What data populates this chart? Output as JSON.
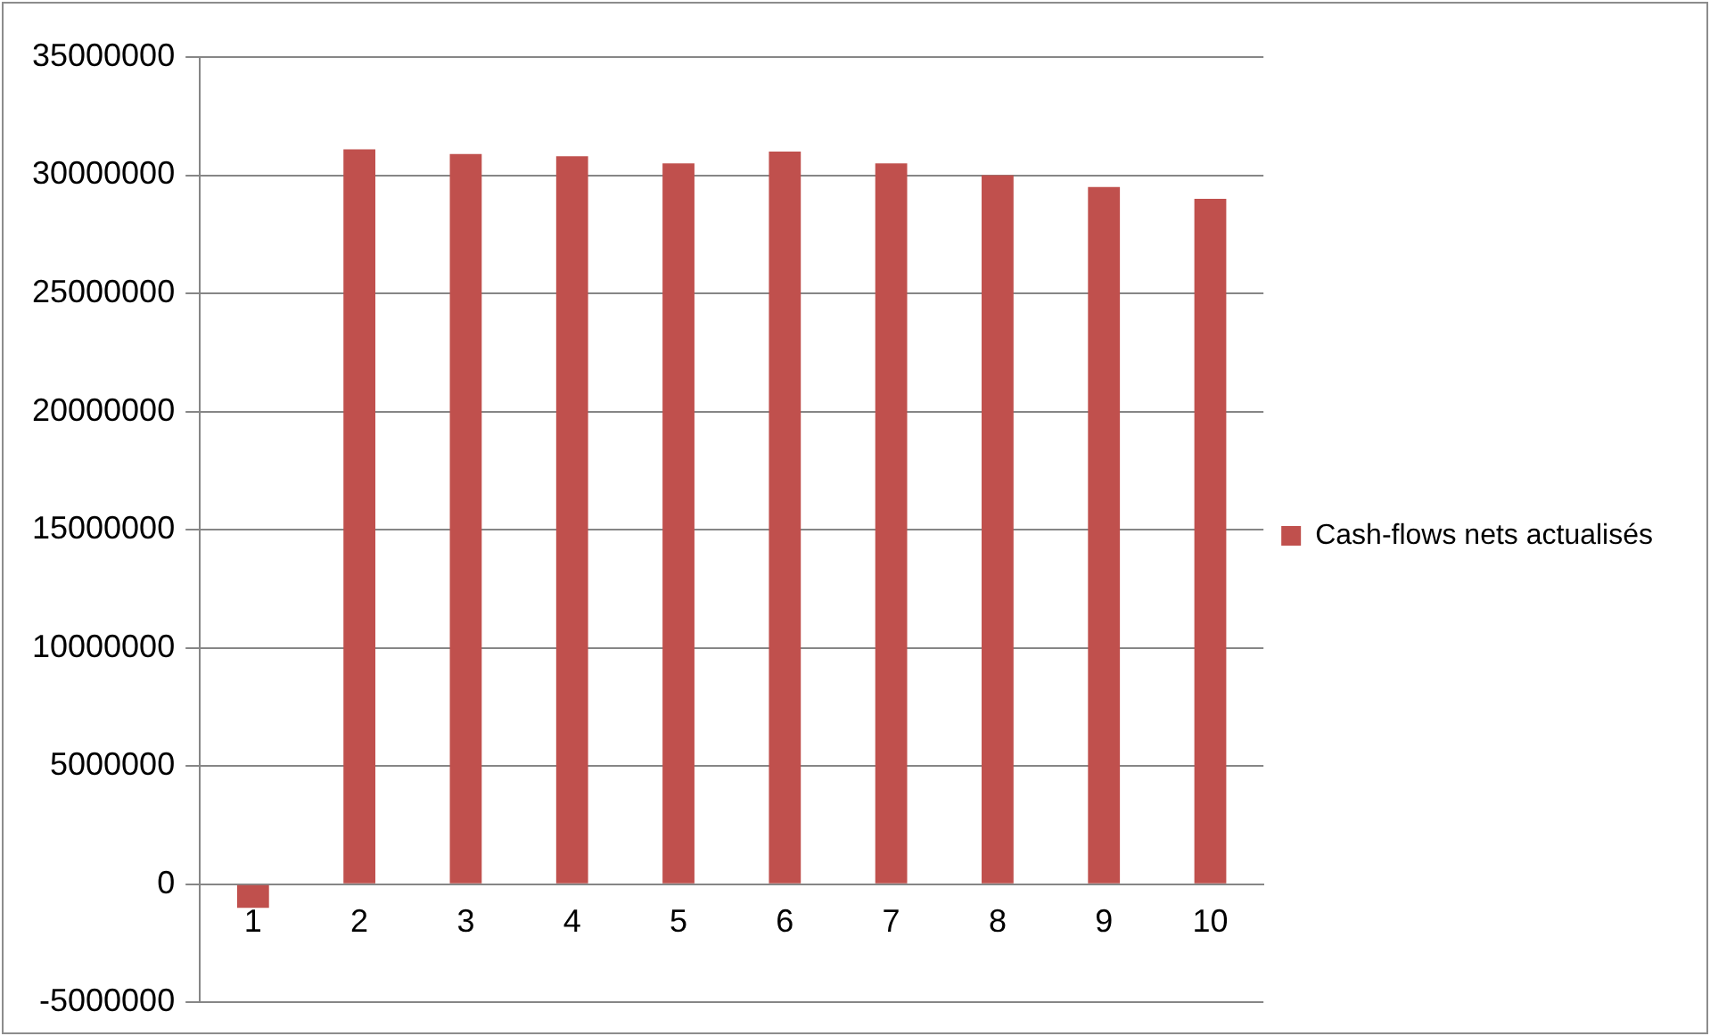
{
  "chart_data": {
    "type": "bar",
    "categories": [
      "1",
      "2",
      "3",
      "4",
      "5",
      "6",
      "7",
      "8",
      "9",
      "10"
    ],
    "series": [
      {
        "name": "Cash-flows nets actualisés",
        "color": "#c0504d",
        "values": [
          -1000000,
          31100000,
          30900000,
          30800000,
          30500000,
          31000000,
          30500000,
          30000000,
          29500000,
          29000000
        ]
      }
    ],
    "ylim": [
      -5000000,
      35000000
    ],
    "yticks": [
      -5000000,
      0,
      5000000,
      10000000,
      15000000,
      20000000,
      25000000,
      30000000,
      35000000
    ],
    "grid": "y",
    "legend": "right"
  }
}
